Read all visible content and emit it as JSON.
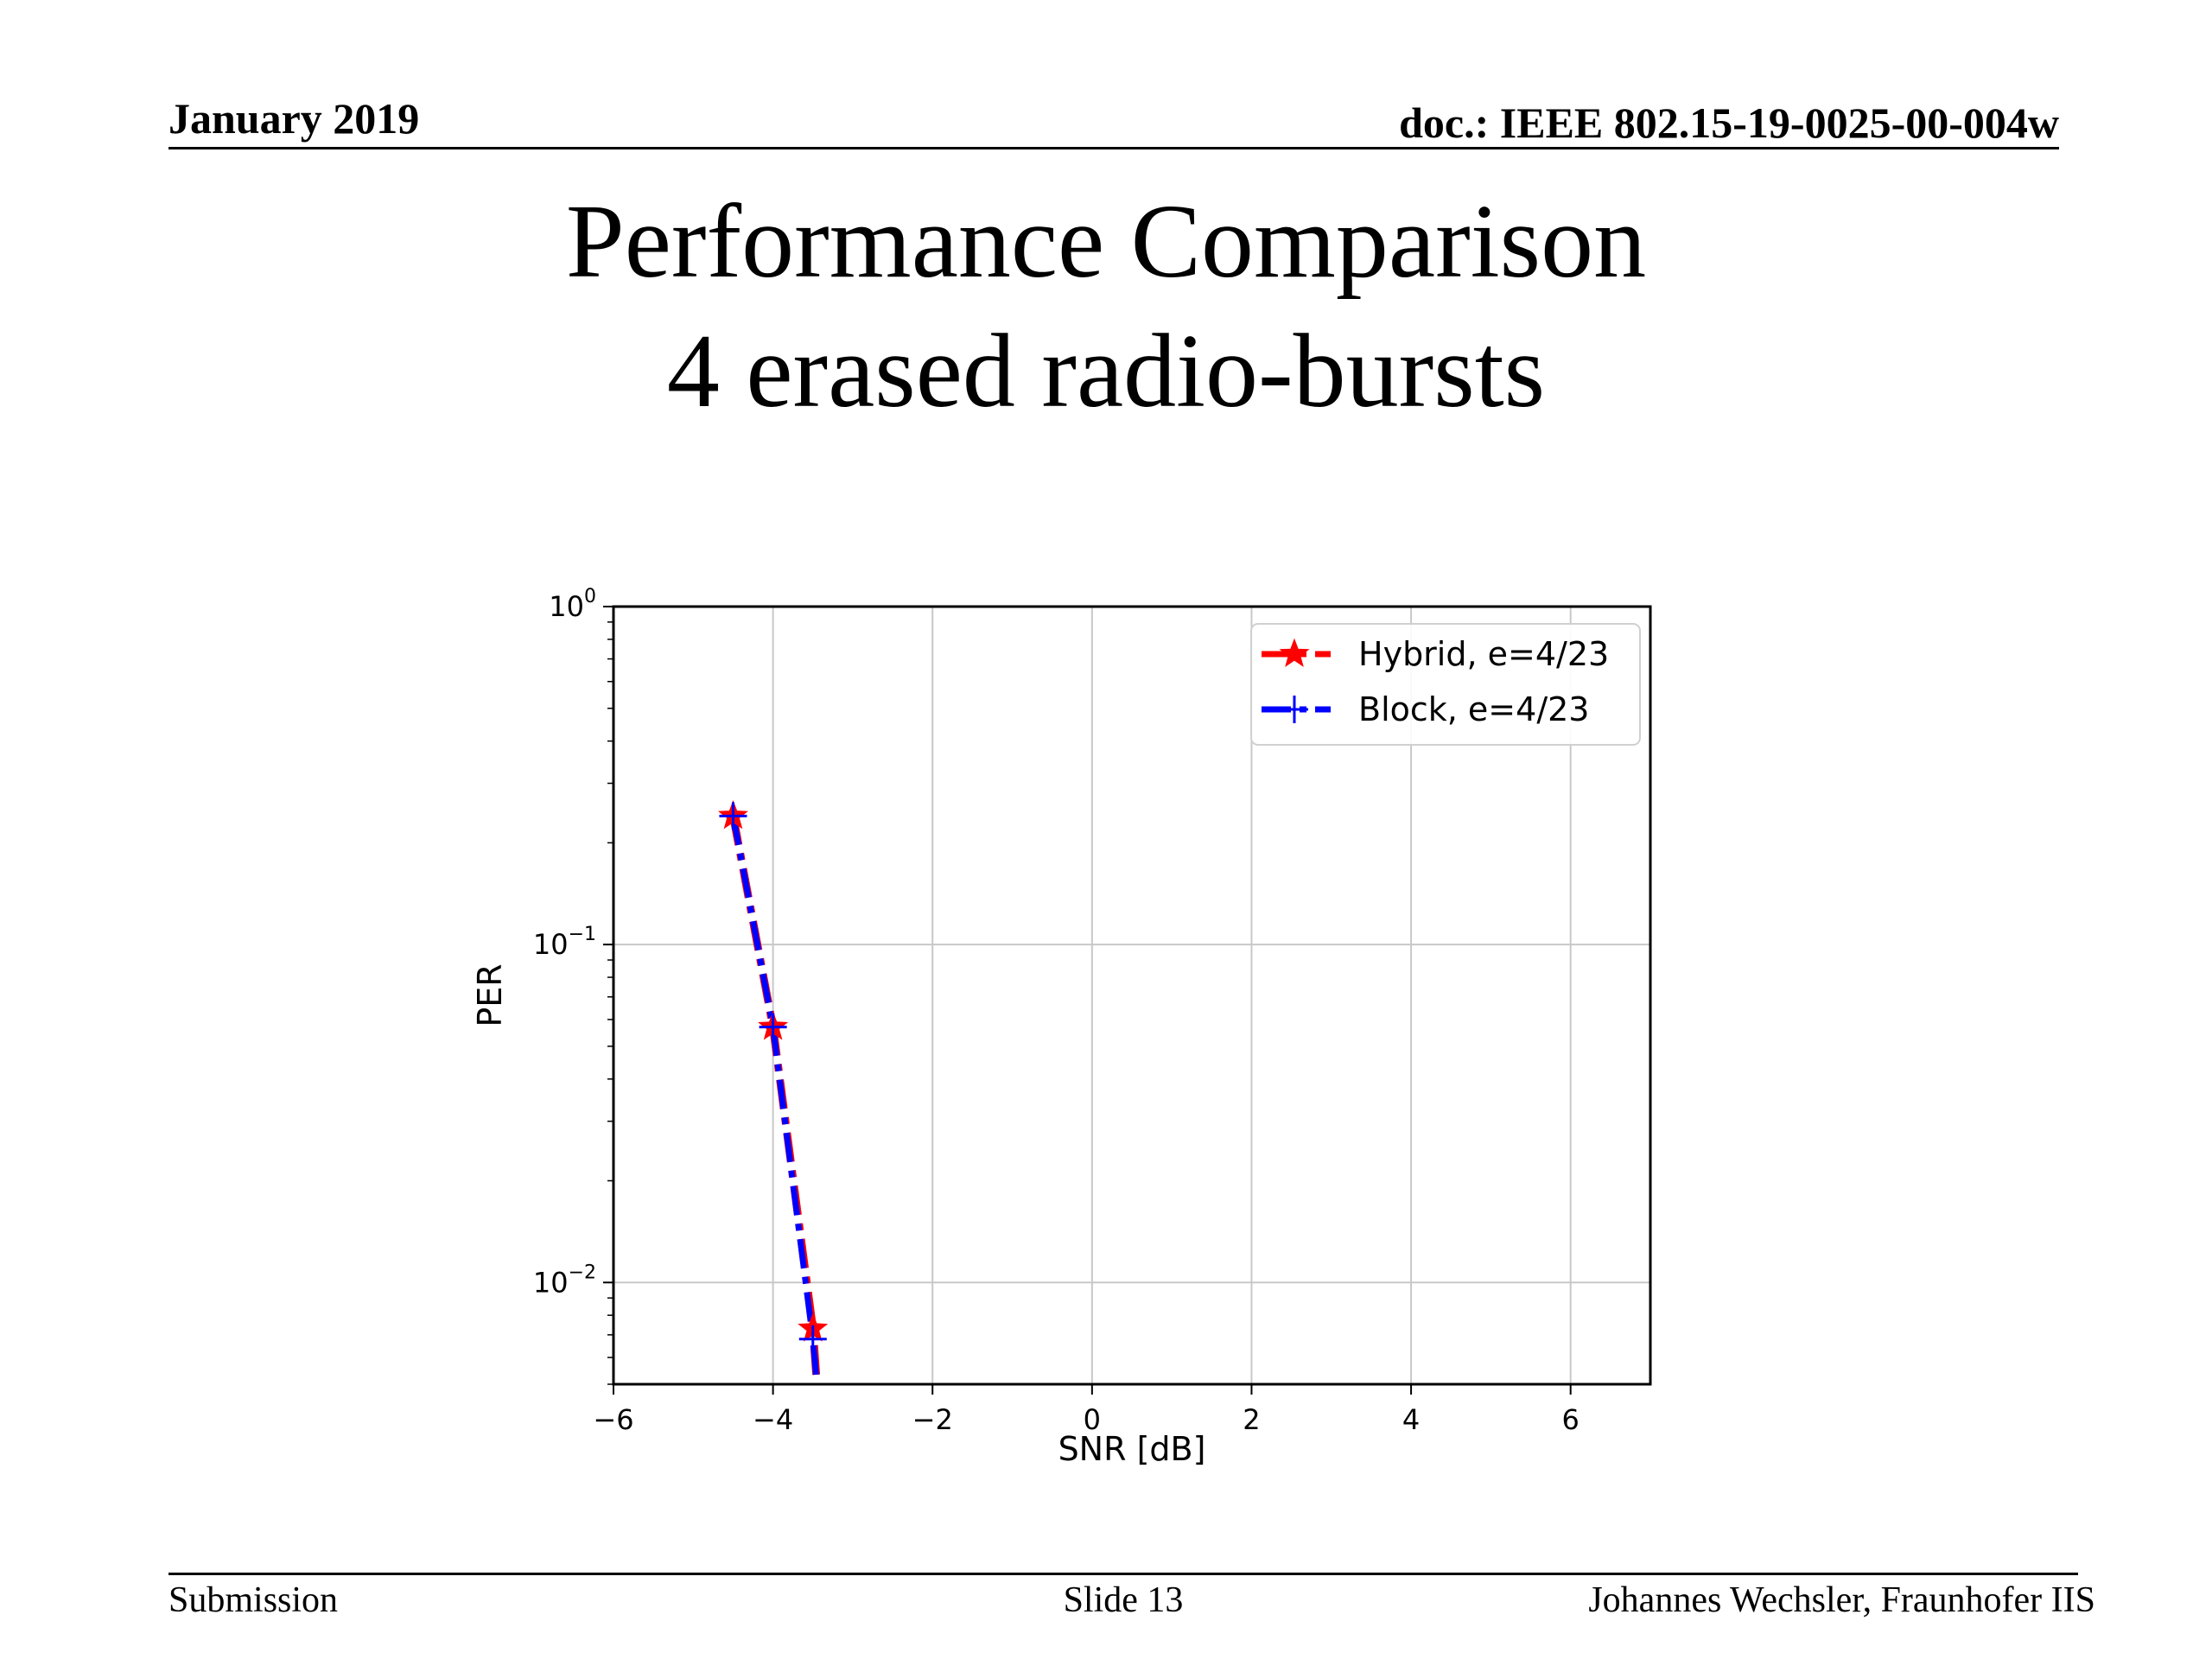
{
  "header": {
    "date": "January 2019",
    "doc": "doc.: IEEE 802.15-19-0025-00-004w"
  },
  "title": {
    "line1": "Performance Comparison",
    "line2": "4 erased radio-bursts"
  },
  "footer": {
    "left": "Submission",
    "center": "Slide 13",
    "right": "Johannes Wechsler, Fraunhofer IIS"
  },
  "chart_data": {
    "type": "line",
    "xlabel": "SNR [dB]",
    "ylabel": "PER",
    "xlim": [
      -6,
      7
    ],
    "ylim": [
      0.005,
      1
    ],
    "yscale": "log",
    "grid": true,
    "legend_position": "top-right",
    "x_ticks": [
      -6,
      -4,
      -2,
      0,
      2,
      4,
      6
    ],
    "x_tick_labels": [
      "−6",
      "−4",
      "−2",
      "0",
      "2",
      "4",
      "6"
    ],
    "y_ticks": [
      1,
      0.1,
      0.01
    ],
    "y_tick_labels": [
      {
        "base": "10",
        "exp": "0"
      },
      {
        "base": "10",
        "exp": "−1"
      },
      {
        "base": "10",
        "exp": "−2"
      }
    ],
    "series": [
      {
        "name": "Hybrid, e=4/23",
        "color": "#ff0000",
        "marker": "star",
        "linestyle": "dashdot",
        "x": [
          -4.5,
          -4.0,
          -3.5,
          -3.45
        ],
        "y": [
          0.24,
          0.057,
          0.0073,
          0.005
        ]
      },
      {
        "name": "Block, e=4/23",
        "color": "#0000ff",
        "marker": "plus",
        "linestyle": "dashdot",
        "x": [
          -4.5,
          -4.0,
          -3.5,
          -3.45
        ],
        "y": [
          0.24,
          0.057,
          0.0068,
          0.005
        ]
      }
    ]
  }
}
